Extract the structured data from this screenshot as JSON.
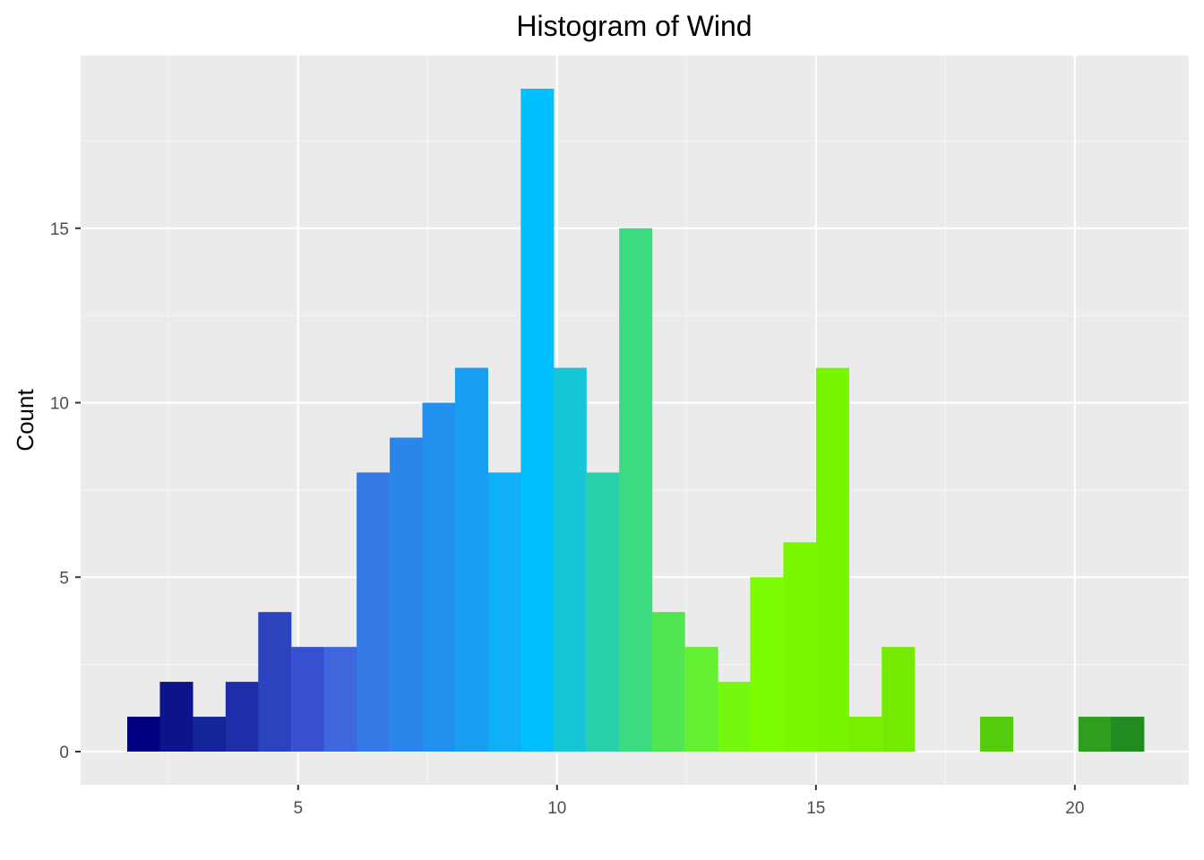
{
  "chart_data": {
    "type": "bar",
    "title": "Histogram of Wind",
    "xlabel": "",
    "ylabel": "Count",
    "x_ticks": [
      5,
      10,
      15,
      20
    ],
    "y_ticks": [
      0,
      5,
      10,
      15
    ],
    "xlim": [
      0.8,
      22.2
    ],
    "ylim": [
      -0.95,
      19.95
    ],
    "grid": true,
    "legend": "none",
    "bin_width": 0.633,
    "bins": [
      {
        "x_start": 1.7,
        "count": 1,
        "color": "#000080"
      },
      {
        "x_start": 2.33,
        "count": 2,
        "color": "#0c148c"
      },
      {
        "x_start": 2.97,
        "count": 1,
        "color": "#16249a"
      },
      {
        "x_start": 3.6,
        "count": 2,
        "color": "#1f2ea8"
      },
      {
        "x_start": 4.23,
        "count": 4,
        "color": "#2b43bf"
      },
      {
        "x_start": 4.87,
        "count": 3,
        "color": "#3650cf"
      },
      {
        "x_start": 5.5,
        "count": 3,
        "color": "#4066de"
      },
      {
        "x_start": 6.13,
        "count": 8,
        "color": "#3479e6"
      },
      {
        "x_start": 6.77,
        "count": 9,
        "color": "#2a86ea"
      },
      {
        "x_start": 7.4,
        "count": 10,
        "color": "#2190ee"
      },
      {
        "x_start": 8.03,
        "count": 11,
        "color": "#199ff2"
      },
      {
        "x_start": 8.67,
        "count": 8,
        "color": "#0fb0f7"
      },
      {
        "x_start": 9.3,
        "count": 19,
        "color": "#00bfff"
      },
      {
        "x_start": 9.93,
        "count": 11,
        "color": "#16c6d6"
      },
      {
        "x_start": 10.57,
        "count": 8,
        "color": "#29d1ab"
      },
      {
        "x_start": 11.2,
        "count": 15,
        "color": "#3ddb80"
      },
      {
        "x_start": 11.83,
        "count": 4,
        "color": "#52e552"
      },
      {
        "x_start": 12.47,
        "count": 3,
        "color": "#63ef32"
      },
      {
        "x_start": 13.1,
        "count": 2,
        "color": "#74f80f"
      },
      {
        "x_start": 13.73,
        "count": 5,
        "color": "#7cfc00"
      },
      {
        "x_start": 14.37,
        "count": 6,
        "color": "#7af800"
      },
      {
        "x_start": 15.0,
        "count": 11,
        "color": "#79f500"
      },
      {
        "x_start": 15.63,
        "count": 1,
        "color": "#77f000"
      },
      {
        "x_start": 16.27,
        "count": 3,
        "color": "#74ea00"
      },
      {
        "x_start": 16.9,
        "count": 0,
        "color": "#6adc00"
      },
      {
        "x_start": 17.53,
        "count": 0,
        "color": "#60cc06"
      },
      {
        "x_start": 18.17,
        "count": 1,
        "color": "#55cc0c"
      },
      {
        "x_start": 18.8,
        "count": 0,
        "color": "#44b214"
      },
      {
        "x_start": 19.43,
        "count": 0,
        "color": "#389f1a"
      },
      {
        "x_start": 20.07,
        "count": 1,
        "color": "#2e9e1e"
      },
      {
        "x_start": 20.7,
        "count": 1,
        "color": "#228b22"
      }
    ]
  },
  "colors": {
    "panel_background": "#ebebeb",
    "grid_major": "#ffffff",
    "grid_minor": "#f5f5f5",
    "tick_text": "#4d4d4d"
  }
}
